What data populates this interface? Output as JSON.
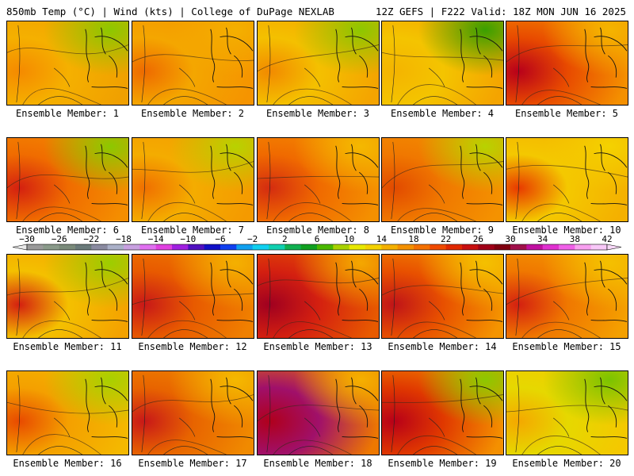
{
  "header": {
    "left": "850mb Temp (°C) | Wind (kts) | College of DuPage NEXLAB",
    "right": "12Z GEFS | F222 Valid: 18Z MON JUN 16 2025"
  },
  "label_prefix": "Ensemble Member: ",
  "members": [
    {
      "id": "1",
      "bg": "#f0a000",
      "hot": "#f58a00",
      "hot2": "#f5b000",
      "cool": "#8cc800"
    },
    {
      "id": "2",
      "bg": "#f59400",
      "hot": "#ee6a00",
      "hot2": "#f4a600",
      "cool": "#f4b000"
    },
    {
      "id": "3",
      "bg": "#f4a400",
      "hot": "#f28a00",
      "hot2": "#f4c000",
      "cool": "#8cc800"
    },
    {
      "id": "4",
      "bg": "#f4a400",
      "hot": "#f4b400",
      "hot2": "#f4c400",
      "cool": "#3aa000"
    },
    {
      "id": "5",
      "bg": "#f49000",
      "hot": "#b8001a",
      "hot2": "#e84a00",
      "cool": "#f4b400"
    },
    {
      "id": "6",
      "bg": "#f48e00",
      "hot": "#d42010",
      "hot2": "#f06c00",
      "cool": "#8cc800"
    },
    {
      "id": "7",
      "bg": "#f49a00",
      "hot": "#f07000",
      "hot2": "#f4ac00",
      "cool": "#b8d200"
    },
    {
      "id": "8",
      "bg": "#f49000",
      "hot": "#d42c10",
      "hot2": "#f06a00",
      "cool": "#f4b800"
    },
    {
      "id": "9",
      "bg": "#f49200",
      "hot": "#e24a00",
      "hot2": "#f07800",
      "cool": "#b8d200"
    },
    {
      "id": "10",
      "bg": "#f4b000",
      "hot": "#e83a00",
      "hot2": "#f4c800",
      "cool": "#f4d200"
    },
    {
      "id": "11",
      "bg": "#f4a200",
      "hot": "#d42010",
      "hot2": "#f4c000",
      "cool": "#9cce00"
    },
    {
      "id": "12",
      "bg": "#f08000",
      "hot": "#c81818",
      "hot2": "#e85a00",
      "cool": "#f4b000"
    },
    {
      "id": "13",
      "bg": "#e85a00",
      "hot": "#a00020",
      "hot2": "#d42010",
      "cool": "#f4a800"
    },
    {
      "id": "14",
      "bg": "#f49400",
      "hot": "#c01418",
      "hot2": "#e85000",
      "cool": "#f4c000"
    },
    {
      "id": "15",
      "bg": "#f4a000",
      "hot": "#d42010",
      "hot2": "#f07800",
      "cool": "#f4c000"
    },
    {
      "id": "16",
      "bg": "#f4b800",
      "hot": "#e84a00",
      "hot2": "#f4a000",
      "cool": "#a8d000"
    },
    {
      "id": "17",
      "bg": "#f08a00",
      "hot": "#c81818",
      "hot2": "#e86400",
      "cool": "#f4b800"
    },
    {
      "id": "18",
      "bg": "#ee7800",
      "hot": "#b0001c",
      "hot2": "#a0106a",
      "cool": "#f4b000"
    },
    {
      "id": "19",
      "bg": "#f49000",
      "hot": "#b80018",
      "hot2": "#e03800",
      "cool": "#8cc800"
    },
    {
      "id": "20",
      "bg": "#f4c800",
      "hot": "#f4a800",
      "hot2": "#e6d800",
      "cool": "#7ac400"
    }
  ],
  "colorbar": {
    "labels": [
      "−30",
      "−26",
      "−22",
      "−18",
      "−14",
      "−10",
      "−6",
      "−2",
      "2",
      "6",
      "10",
      "14",
      "18",
      "22",
      "26",
      "30",
      "34",
      "38",
      "42"
    ],
    "colors": [
      "#9a9a9a",
      "#8a9a8a",
      "#7a8a7a",
      "#6a7a7a",
      "#8a8aa0",
      "#aab0c8",
      "#c8a0e0",
      "#e070f0",
      "#e040e0",
      "#a020e0",
      "#5010c0",
      "#1010c8",
      "#1040f0",
      "#10a0f0",
      "#10d0f0",
      "#10d0b0",
      "#10b050",
      "#10a020",
      "#4ab800",
      "#a8d200",
      "#e8e800",
      "#f4d200",
      "#f4b000",
      "#f49000",
      "#f47000",
      "#f04a00",
      "#e02800",
      "#c81010",
      "#a00018",
      "#800010",
      "#a0104a",
      "#c010a0",
      "#e030d0",
      "#f060e8",
      "#f8a0f0",
      "#f8c8f8"
    ]
  }
}
